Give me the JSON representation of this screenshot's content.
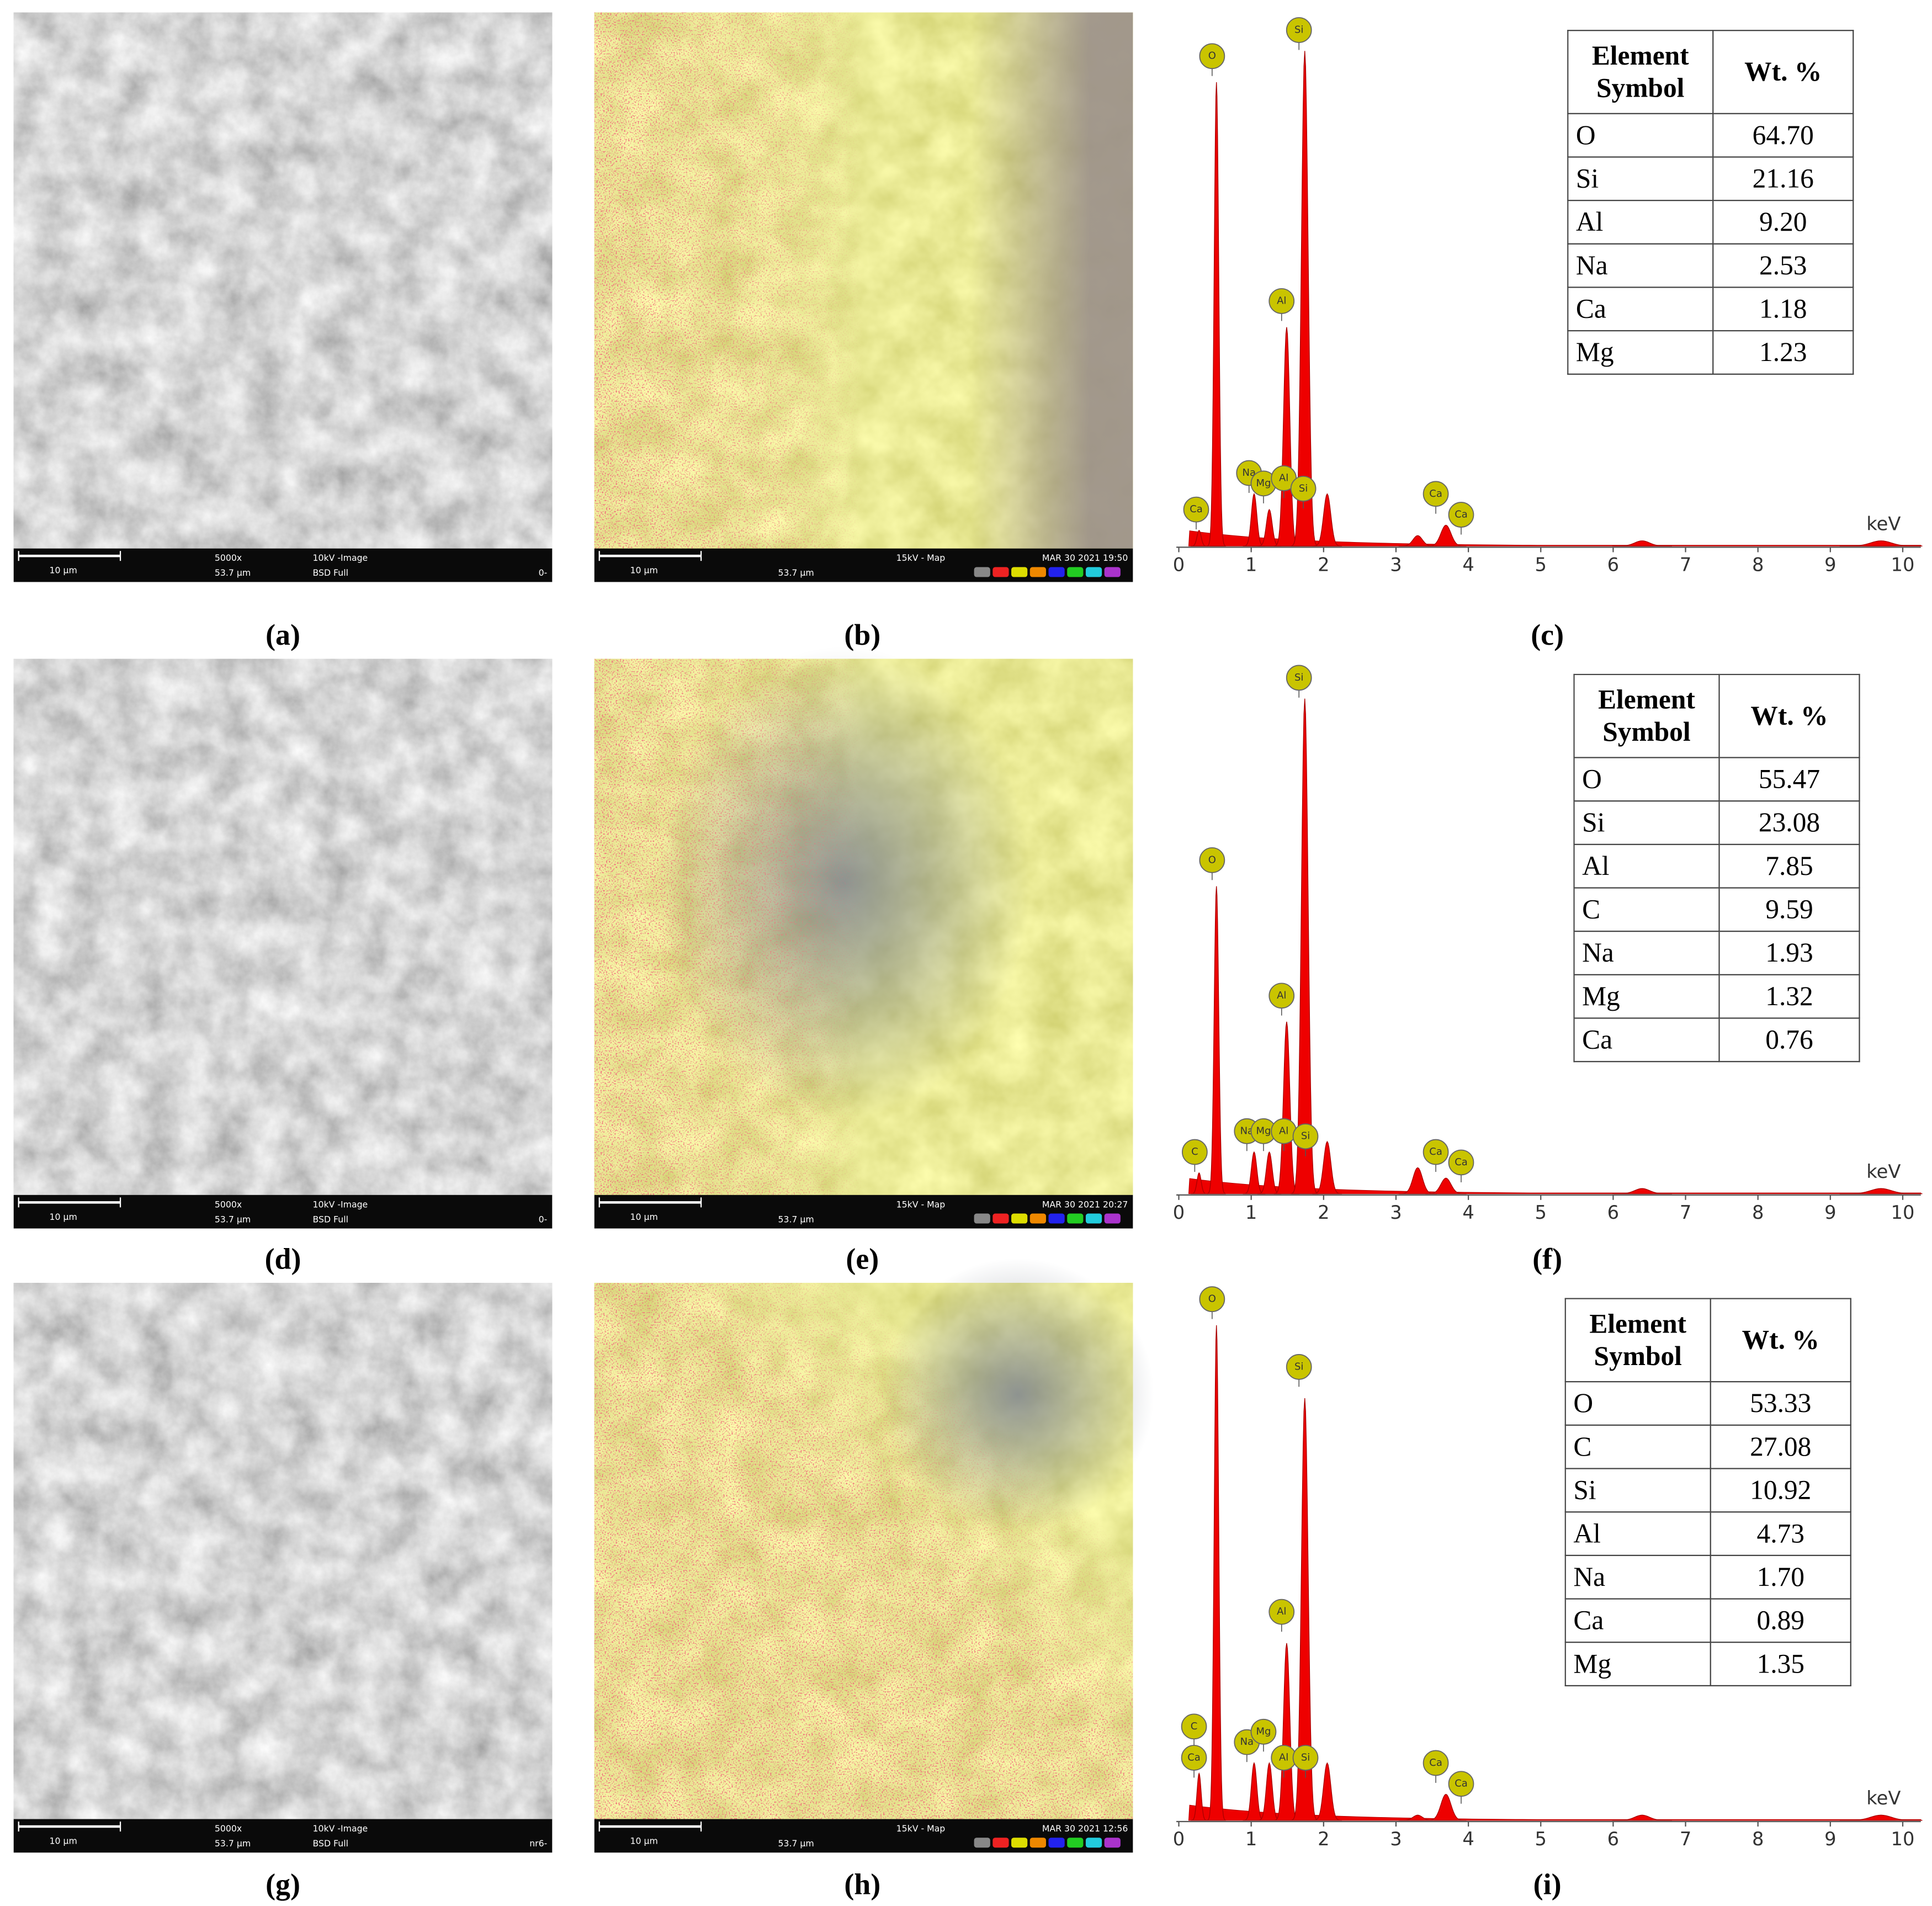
{
  "rows": [
    {
      "sem": {
        "label": "(a)",
        "scale_bar": "10 µm",
        "magnification": "5000x",
        "field": "53.7 µm",
        "mode": "10kV -Image",
        "detector": "BSD Full",
        "sample_id": "0-"
      },
      "map": {
        "label": "(b)",
        "scale_bar": "10 µm",
        "field": "53.7 µm",
        "mode": "15kV - Map",
        "date": "MAR 30 2021 19:50"
      },
      "spectrum": {
        "label": "(c)",
        "peaks": [
          {
            "kev": 0.28,
            "height": 3
          },
          {
            "kev": 0.52,
            "height": 89
          },
          {
            "kev": 1.04,
            "height": 10
          },
          {
            "kev": 1.25,
            "height": 7
          },
          {
            "kev": 1.49,
            "height": 42
          },
          {
            "kev": 1.74,
            "height": 95
          },
          {
            "kev": 2.05,
            "height": 10
          },
          {
            "kev": 3.3,
            "height": 2
          },
          {
            "kev": 3.69,
            "height": 4
          },
          {
            "kev": 6.4,
            "height": 1
          },
          {
            "kev": 9.7,
            "height": 1
          }
        ],
        "peak_labels": [
          {
            "text": "O",
            "kev": 0.46,
            "level": 94
          },
          {
            "text": "Si",
            "kev": 1.66,
            "level": 99
          },
          {
            "text": "Al",
            "kev": 1.42,
            "level": 47
          },
          {
            "text": "Na",
            "kev": 0.97,
            "level": 14
          },
          {
            "text": "Mg",
            "kev": 1.17,
            "level": 12
          },
          {
            "text": "Al",
            "kev": 1.45,
            "level": 13
          },
          {
            "text": "Si",
            "kev": 1.72,
            "level": 11
          },
          {
            "text": "Ca",
            "kev": 0.24,
            "level": 7
          },
          {
            "text": "Ca",
            "kev": 3.55,
            "level": 10
          },
          {
            "text": "Ca",
            "kev": 3.9,
            "level": 6
          }
        ],
        "table": {
          "header": [
            "Element Symbol",
            "Wt. %"
          ],
          "rows": [
            [
              "O",
              "64.70"
            ],
            [
              "Si",
              "21.16"
            ],
            [
              "Al",
              "9.20"
            ],
            [
              "Na",
              "2.53"
            ],
            [
              "Ca",
              "1.18"
            ],
            [
              "Mg",
              "1.23"
            ]
          ]
        }
      }
    },
    {
      "sem": {
        "label": "(d)",
        "scale_bar": "10 µm",
        "magnification": "5000x",
        "field": "53.7 µm",
        "mode": "10kV -Image",
        "detector": "BSD Full",
        "sample_id": "0-"
      },
      "map": {
        "label": "(e)",
        "scale_bar": "10 µm",
        "field": "53.7 µm",
        "mode": "15kV - Map",
        "date": "MAR 30 2021 20:27"
      },
      "spectrum": {
        "label": "(f)",
        "peaks": [
          {
            "kev": 0.28,
            "height": 4
          },
          {
            "kev": 0.52,
            "height": 59
          },
          {
            "kev": 1.04,
            "height": 8
          },
          {
            "kev": 1.25,
            "height": 8
          },
          {
            "kev": 1.49,
            "height": 33
          },
          {
            "kev": 1.74,
            "height": 95
          },
          {
            "kev": 2.05,
            "height": 10
          },
          {
            "kev": 3.3,
            "height": 5
          },
          {
            "kev": 3.69,
            "height": 3
          },
          {
            "kev": 6.4,
            "height": 1
          },
          {
            "kev": 9.7,
            "height": 1
          }
        ],
        "peak_labels": [
          {
            "text": "O",
            "kev": 0.46,
            "level": 64
          },
          {
            "text": "Si",
            "kev": 1.66,
            "level": 99
          },
          {
            "text": "Al",
            "kev": 1.42,
            "level": 38
          },
          {
            "text": "Na",
            "kev": 0.94,
            "level": 12
          },
          {
            "text": "Mg",
            "kev": 1.17,
            "level": 12
          },
          {
            "text": "Al",
            "kev": 1.45,
            "level": 12
          },
          {
            "text": "Si",
            "kev": 1.75,
            "level": 11
          },
          {
            "text": "C",
            "kev": 0.22,
            "level": 8
          },
          {
            "text": "Ca",
            "kev": 3.55,
            "level": 8
          },
          {
            "text": "Ca",
            "kev": 3.9,
            "level": 6
          }
        ],
        "table": {
          "header": [
            "Element Symbol",
            "Wt. %"
          ],
          "rows": [
            [
              "O",
              "55.47"
            ],
            [
              "Si",
              "23.08"
            ],
            [
              "Al",
              "7.85"
            ],
            [
              "C",
              "9.59"
            ],
            [
              "Na",
              "1.93"
            ],
            [
              "Mg",
              "1.32"
            ],
            [
              "Ca",
              "0.76"
            ]
          ]
        }
      }
    },
    {
      "sem": {
        "label": "(g)",
        "scale_bar": "10 µm",
        "magnification": "5000x",
        "field": "53.7 µm",
        "mode": "10kV -Image",
        "detector": "BSD Full",
        "sample_id": "nr6-"
      },
      "map": {
        "label": "(h)",
        "scale_bar": "10 µm",
        "field": "53.7 µm",
        "mode": "15kV - Map",
        "date": "MAR 30 2021 12:56"
      },
      "spectrum": {
        "label": "(i)",
        "peaks": [
          {
            "kev": 0.28,
            "height": 9
          },
          {
            "kev": 0.52,
            "height": 95
          },
          {
            "kev": 1.04,
            "height": 11
          },
          {
            "kev": 1.25,
            "height": 11
          },
          {
            "kev": 1.49,
            "height": 34
          },
          {
            "kev": 1.74,
            "height": 81
          },
          {
            "kev": 2.05,
            "height": 11
          },
          {
            "kev": 3.3,
            "height": 1
          },
          {
            "kev": 3.69,
            "height": 5
          },
          {
            "kev": 6.4,
            "height": 1
          },
          {
            "kev": 9.7,
            "height": 1
          }
        ],
        "peak_labels": [
          {
            "text": "O",
            "kev": 0.46,
            "level": 100
          },
          {
            "text": "Si",
            "kev": 1.66,
            "level": 87
          },
          {
            "text": "Al",
            "kev": 1.42,
            "level": 40
          },
          {
            "text": "C",
            "kev": 0.21,
            "level": 18
          },
          {
            "text": "Ca",
            "kev": 0.21,
            "level": 12
          },
          {
            "text": "Na",
            "kev": 0.94,
            "level": 15
          },
          {
            "text": "Mg",
            "kev": 1.17,
            "level": 17
          },
          {
            "text": "Al",
            "kev": 1.45,
            "level": 12
          },
          {
            "text": "Si",
            "kev": 1.75,
            "level": 12
          },
          {
            "text": "Ca",
            "kev": 3.55,
            "level": 11
          },
          {
            "text": "Ca",
            "kev": 3.9,
            "level": 7
          }
        ],
        "table": {
          "header": [
            "Element Symbol",
            "Wt. %"
          ],
          "rows": [
            [
              "O",
              "53.33"
            ],
            [
              "C",
              "27.08"
            ],
            [
              "Si",
              "10.92"
            ],
            [
              "Al",
              "4.73"
            ],
            [
              "Na",
              "1.70"
            ],
            [
              "Ca",
              "0.89"
            ],
            [
              "Mg",
              "1.35"
            ]
          ]
        }
      }
    }
  ],
  "spectrum_axis": {
    "xlabel": "keV",
    "xlim": [
      0,
      10.25
    ],
    "xticks": [
      0,
      1,
      2,
      3,
      4,
      5,
      6,
      7,
      8,
      9,
      10
    ],
    "ylim": [
      0,
      100
    ]
  }
}
